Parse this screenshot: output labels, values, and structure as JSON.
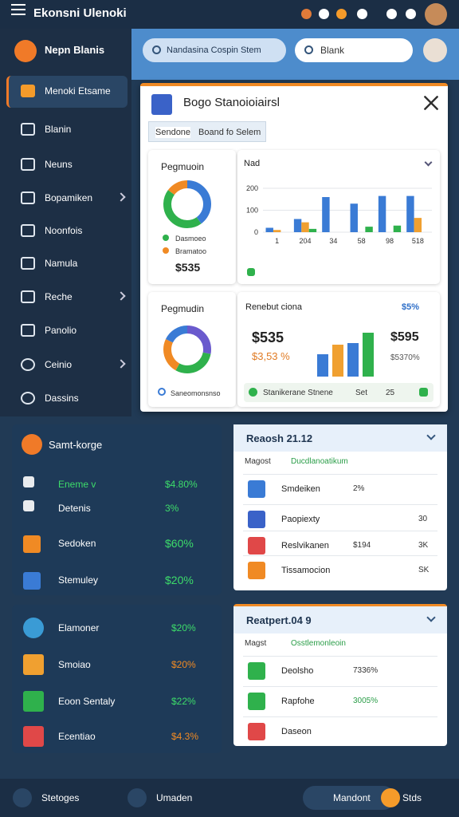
{
  "topbar": {
    "title": "Ekonsni Ulenoki"
  },
  "sidebar": {
    "brand": "Nepn Blanis",
    "items": [
      "Menoki Etsame",
      "Blanin",
      "Neuns",
      "Bopamiken",
      "Noonfois",
      "Namula",
      "Reche",
      "Panolio",
      "Ceinio",
      "Dassins"
    ]
  },
  "header": {
    "dropdown": "Nandasina Cospin Stem",
    "search": "Blank"
  },
  "modal": {
    "title": "Bogo Stanoioiairsl",
    "tabs": [
      "Sendone",
      "Boand fo Selem"
    ],
    "donut1": {
      "title": "Pegmuoin",
      "values": [
        40,
        45,
        15
      ],
      "colors": [
        "#3a7bd5",
        "#2fb14c",
        "#f08a24"
      ],
      "legend": [
        "Dasmoeo",
        "Bramatoo"
      ],
      "total": "$535"
    },
    "donut2": {
      "title": "Pegmudin",
      "values": [
        28,
        30,
        24,
        18
      ],
      "colors": [
        "#6a5acd",
        "#2fb14c",
        "#f08a24",
        "#3a7bd5"
      ],
      "legend": "Saneomonsnso"
    },
    "revenue": {
      "title": "Renebut ciona",
      "badge": "$5%",
      "value1": "$535",
      "change1": "$3,53 %",
      "value2": "$595",
      "change2": "$5370%",
      "bars": [
        28,
        40,
        42,
        55
      ],
      "bar_colors": [
        "#3a7bd5",
        "#f0a030",
        "#3a7bd5",
        "#2fb14c"
      ],
      "footer": [
        "Stanikerane Stnene",
        "Set",
        "25"
      ]
    }
  },
  "chart_data": {
    "type": "bar",
    "title": "Nad",
    "categories": [
      "1",
      "204",
      "34",
      "58",
      "98",
      "518"
    ],
    "series": [
      {
        "color": "#3a7bd5",
        "values": [
          20,
          60,
          160,
          130,
          165,
          165
        ]
      },
      {
        "color": "#f0a030",
        "values": [
          10,
          45,
          0,
          0,
          0,
          65
        ]
      },
      {
        "color": "#2fb14c",
        "values": [
          0,
          15,
          0,
          25,
          30,
          0
        ]
      }
    ],
    "ylim": [
      0,
      200
    ],
    "yticks": [
      0,
      100,
      200
    ],
    "grid": true
  },
  "panel1": {
    "title": "Samt-korge",
    "rows": [
      [
        "Eneme v",
        "$4.80%"
      ],
      [
        "Detenis",
        "3%"
      ],
      [
        "Sedoken",
        "$60%"
      ],
      [
        "Stemuley",
        "$20%"
      ]
    ]
  },
  "panel2": {
    "rows": [
      [
        "Elamoner",
        "$20%"
      ],
      [
        "Smoiao",
        "$20%"
      ],
      [
        "Eoon Sentaly",
        "$22%"
      ],
      [
        "Ecentiao",
        "$4.3%"
      ]
    ]
  },
  "list1": {
    "title": "Reaosh 21.12",
    "subheader": [
      "Magost",
      "Ducdlanoatikum"
    ],
    "rows": [
      {
        "name": "Smdeiken",
        "mid": "2%"
      },
      {
        "name": "Paopiexty",
        "right": "30"
      },
      {
        "name": "Reslvikanen",
        "mid": "$194",
        "right": "3K"
      },
      {
        "name": "Tissamocion",
        "right": "SK"
      }
    ]
  },
  "list2": {
    "title": "Reatpert.04 9",
    "subheader": [
      "Magst",
      "Osstlemonleoin"
    ],
    "rows": [
      {
        "name": "Deolsho",
        "mid": "7336%"
      },
      {
        "name": "Rapfohe",
        "mid": "3005%"
      },
      {
        "name": "Daseon"
      }
    ]
  },
  "bottom_nav": [
    "Stetoges",
    "Umaden",
    "Mandont",
    "Stds"
  ]
}
